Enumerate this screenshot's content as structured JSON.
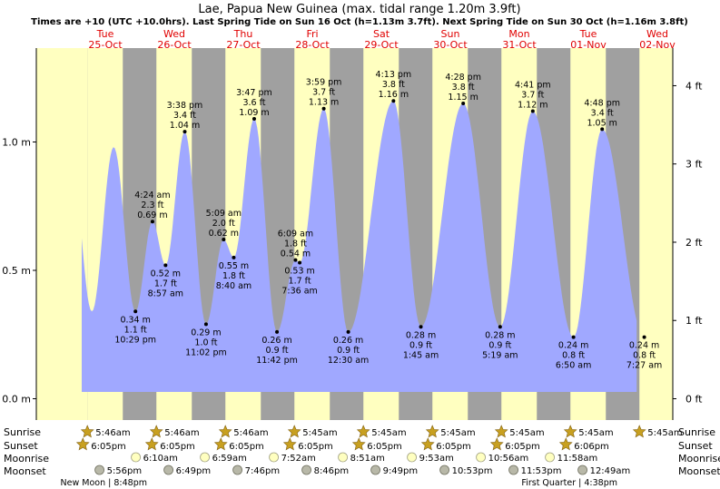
{
  "title": "Lae, Papua New Guinea (max. tidal range 1.20m 3.9ft)",
  "subtitle": "Times are +10 (UTC +10.0hrs). Last Spring Tide on Sun 16 Oct (h=1.13m 3.7ft). Next Spring Tide on Sun 30 Oct (h=1.16m 3.8ft)",
  "colors": {
    "day": "#ffffc0",
    "night": "#a0a0a0",
    "tide": "#a0a8ff",
    "day_header": "#e00000",
    "star": "#c8a020",
    "moonrise": "#ffffc0",
    "moonset": "#b8b8a8"
  },
  "chart_data": {
    "type": "area",
    "ylabel_left": "m",
    "ylabel_right": "ft",
    "ylim": [
      -0.1,
      1.32
    ],
    "y_ticks_m": [
      "0.0 m",
      "0.5 m",
      "1.0 m"
    ],
    "y_ticks_ft": [
      "0 ft",
      "1 ft",
      "2 ft",
      "3 ft",
      "4 ft"
    ],
    "days": [
      {
        "dow": "Tue",
        "date": "25-Oct"
      },
      {
        "dow": "Wed",
        "date": "26-Oct"
      },
      {
        "dow": "Thu",
        "date": "27-Oct"
      },
      {
        "dow": "Fri",
        "date": "28-Oct"
      },
      {
        "dow": "Sat",
        "date": "29-Oct"
      },
      {
        "dow": "Sun",
        "date": "30-Oct"
      },
      {
        "dow": "Mon",
        "date": "31-Oct"
      },
      {
        "dow": "Tue",
        "date": "01-Nov"
      },
      {
        "dow": "Wed",
        "date": "02-Nov"
      }
    ],
    "tides": [
      {
        "t": 22.48,
        "m": 0.34,
        "label": [
          "0.34 m",
          "1.1 ft",
          "10:29 pm"
        ],
        "pos": "below"
      },
      {
        "t": 28.4,
        "m": 0.69,
        "label": [
          "4:24 am",
          "2.3 ft",
          "0.69 m"
        ],
        "pos": "above"
      },
      {
        "t": 32.95,
        "m": 0.52,
        "label": [
          "0.52 m",
          "1.7 ft",
          "8:57 am"
        ],
        "pos": "below"
      },
      {
        "t": 39.63,
        "m": 1.04,
        "label": [
          "3:38 pm",
          "3.4 ft",
          "1.04 m"
        ],
        "pos": "above"
      },
      {
        "t": 47.03,
        "m": 0.29,
        "label": [
          "0.29 m",
          "1.0 ft",
          "11:02 pm"
        ],
        "pos": "below"
      },
      {
        "t": 53.15,
        "m": 0.62,
        "label": [
          "5:09 am",
          "2.0 ft",
          "0.62 m"
        ],
        "pos": "above"
      },
      {
        "t": 56.67,
        "m": 0.55,
        "label": [
          "0.55 m",
          "1.8 ft",
          "8:40 am"
        ],
        "pos": "below"
      },
      {
        "t": 63.78,
        "m": 1.09,
        "label": [
          "3:47 pm",
          "3.6 ft",
          "1.09 m"
        ],
        "pos": "above"
      },
      {
        "t": 71.7,
        "m": 0.26,
        "label": [
          "0.26 m",
          "0.9 ft",
          "11:42 pm"
        ],
        "pos": "below"
      },
      {
        "t": 78.15,
        "m": 0.54,
        "label": [
          "6:09 am",
          "1.8 ft",
          "0.54 m"
        ],
        "pos": "above"
      },
      {
        "t": 79.6,
        "m": 0.53,
        "label": [
          "0.53 m",
          "1.7 ft",
          "7:36 am"
        ],
        "pos": "below"
      },
      {
        "t": 87.98,
        "m": 1.13,
        "label": [
          "3:59 pm",
          "3.7 ft",
          "1.13 m"
        ],
        "pos": "above"
      },
      {
        "t": 96.5,
        "m": 0.26,
        "label": [
          "0.26 m",
          "0.9 ft",
          "12:30 am"
        ],
        "pos": "below"
      },
      {
        "t": 112.22,
        "m": 1.16,
        "label": [
          "4:13 pm",
          "3.8 ft",
          "1.16 m"
        ],
        "pos": "above"
      },
      {
        "t": 121.75,
        "m": 0.28,
        "label": [
          "0.28 m",
          "0.9 ft",
          "1:45 am"
        ],
        "pos": "below"
      },
      {
        "t": 136.47,
        "m": 1.15,
        "label": [
          "4:28 pm",
          "3.8 ft",
          "1.15 m"
        ],
        "pos": "above"
      },
      {
        "t": 149.32,
        "m": 0.28,
        "label": [
          "0.28 m",
          "0.9 ft",
          "5:19 am"
        ],
        "pos": "below"
      },
      {
        "t": 160.68,
        "m": 1.12,
        "label": [
          "4:41 pm",
          "3.7 ft",
          "1.12 m"
        ],
        "pos": "above"
      },
      {
        "t": 174.83,
        "m": 0.24,
        "label": [
          "0.24 m",
          "0.8 ft",
          "6:50 am"
        ],
        "pos": "below"
      },
      {
        "t": 184.8,
        "m": 1.05,
        "label": [
          "4:48 pm",
          "3.4 ft",
          "1.05 m"
        ],
        "pos": "above"
      },
      {
        "t": 199.45,
        "m": 0.24,
        "label": [
          "0.24 m",
          "0.8 ft",
          "7:27 am"
        ],
        "pos": "below"
      }
    ],
    "sun": [
      {
        "rise": "5:46am",
        "set": "6:05pm"
      },
      {
        "rise": "5:46am",
        "set": "6:05pm"
      },
      {
        "rise": "5:46am",
        "set": "6:05pm"
      },
      {
        "rise": "5:45am",
        "set": "6:05pm"
      },
      {
        "rise": "5:45am",
        "set": "6:05pm"
      },
      {
        "rise": "5:45am",
        "set": "6:05pm"
      },
      {
        "rise": "5:45am",
        "set": "6:05pm"
      },
      {
        "rise": "5:45am",
        "set": "6:06pm"
      },
      {
        "rise": "5:45am",
        "set": ""
      }
    ],
    "moonrise": [
      "6:10am",
      "6:59am",
      "7:52am",
      "8:51am",
      "9:53am",
      "10:56am",
      "11:58am"
    ],
    "moonset": [
      "5:56pm",
      "6:49pm",
      "7:46pm",
      "8:46pm",
      "9:49pm",
      "10:53pm",
      "11:53pm",
      "12:49am"
    ],
    "moon_phases": [
      "New Moon | 8:48pm",
      "First Quarter | 4:38pm"
    ]
  },
  "row_labels": {
    "sunrise": "Sunrise",
    "sunset": "Sunset",
    "moonrise": "Moonrise",
    "moonset": "Moonset"
  }
}
